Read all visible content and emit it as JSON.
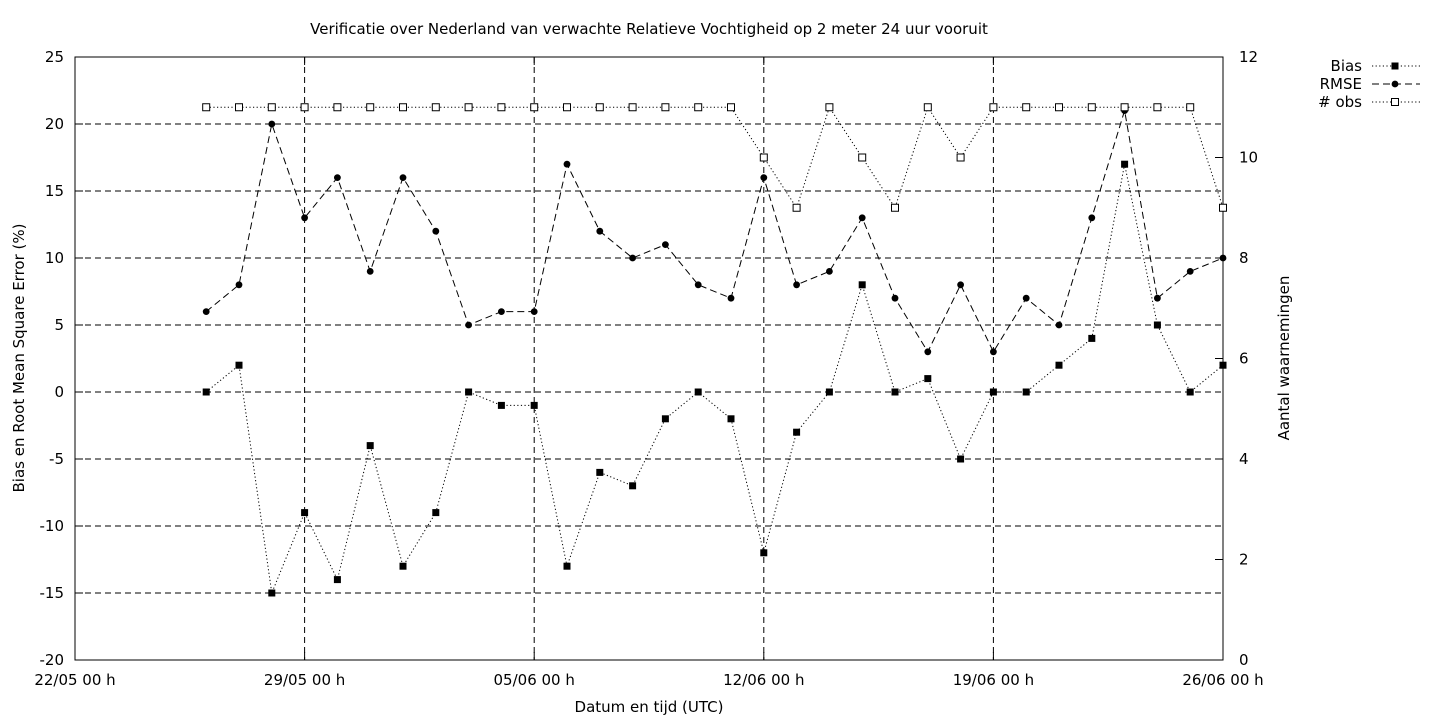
{
  "chart_data": {
    "type": "line",
    "title": "Verificatie over Nederland van verwachte Relatieve Vochtigheid op 2 meter 24 uur vooruit",
    "xlabel": "Datum en tijd (UTC)",
    "ylabel": "Bias en Root Mean Square Error (%)",
    "y2label": "Aantal waarnemingen",
    "xlim": [
      "2023-05-22 00:00",
      "2023-06-26 00:00"
    ],
    "ylim": [
      -20,
      25
    ],
    "y2lim": [
      0,
      12
    ],
    "x_ticks": [
      "22/05 00 h",
      "29/05 00 h",
      "05/06 00 h",
      "12/06 00 h",
      "19/06 00 h",
      "26/06 00 h"
    ],
    "y_ticks": [
      "-20",
      "-15",
      "-10",
      "-5",
      "0",
      "5",
      "10",
      "15",
      "20",
      "25"
    ],
    "y2_ticks": [
      "0",
      "2",
      "4",
      "6",
      "8",
      "10",
      "12"
    ],
    "grid": true,
    "legend_position": "top-right, outside",
    "x": [
      "2023-05-26",
      "2023-05-27",
      "2023-05-28",
      "2023-05-29",
      "2023-05-30",
      "2023-05-31",
      "2023-06-01",
      "2023-06-02",
      "2023-06-03",
      "2023-06-04",
      "2023-06-05",
      "2023-06-06",
      "2023-06-07",
      "2023-06-08",
      "2023-06-09",
      "2023-06-10",
      "2023-06-11",
      "2023-06-12",
      "2023-06-13",
      "2023-06-14",
      "2023-06-15",
      "2023-06-16",
      "2023-06-17",
      "2023-06-18",
      "2023-06-19",
      "2023-06-20",
      "2023-06-21",
      "2023-06-22",
      "2023-06-23",
      "2023-06-24",
      "2023-06-25",
      "2023-06-26"
    ],
    "series": [
      {
        "name": "Bias",
        "axis": "left",
        "style": "dotted",
        "marker": "filled-square",
        "values": [
          0,
          2,
          -15,
          -9,
          -14,
          -4,
          -13,
          -9,
          0,
          -1,
          -1,
          -13,
          -6,
          -7,
          -2,
          0,
          -2,
          -12,
          -3,
          0,
          8,
          0,
          1,
          -5,
          0,
          0,
          2,
          4,
          17,
          5,
          0,
          2
        ]
      },
      {
        "name": "RMSE",
        "axis": "left",
        "style": "dashed",
        "marker": "filled-circle",
        "values": [
          6,
          8,
          20,
          13,
          16,
          9,
          16,
          12,
          5,
          6,
          6,
          17,
          12,
          10,
          11,
          8,
          7,
          16,
          8,
          9,
          13,
          7,
          3,
          8,
          3,
          7,
          5,
          13,
          21,
          7,
          9,
          10
        ]
      },
      {
        "name": "# obs",
        "axis": "right",
        "style": "dotted",
        "marker": "open-square",
        "values": [
          11,
          11,
          11,
          11,
          11,
          11,
          11,
          11,
          11,
          11,
          11,
          11,
          11,
          11,
          11,
          11,
          11,
          10,
          9,
          11,
          10,
          9,
          11,
          10,
          11,
          11,
          11,
          11,
          11,
          11,
          11,
          9
        ]
      }
    ]
  }
}
